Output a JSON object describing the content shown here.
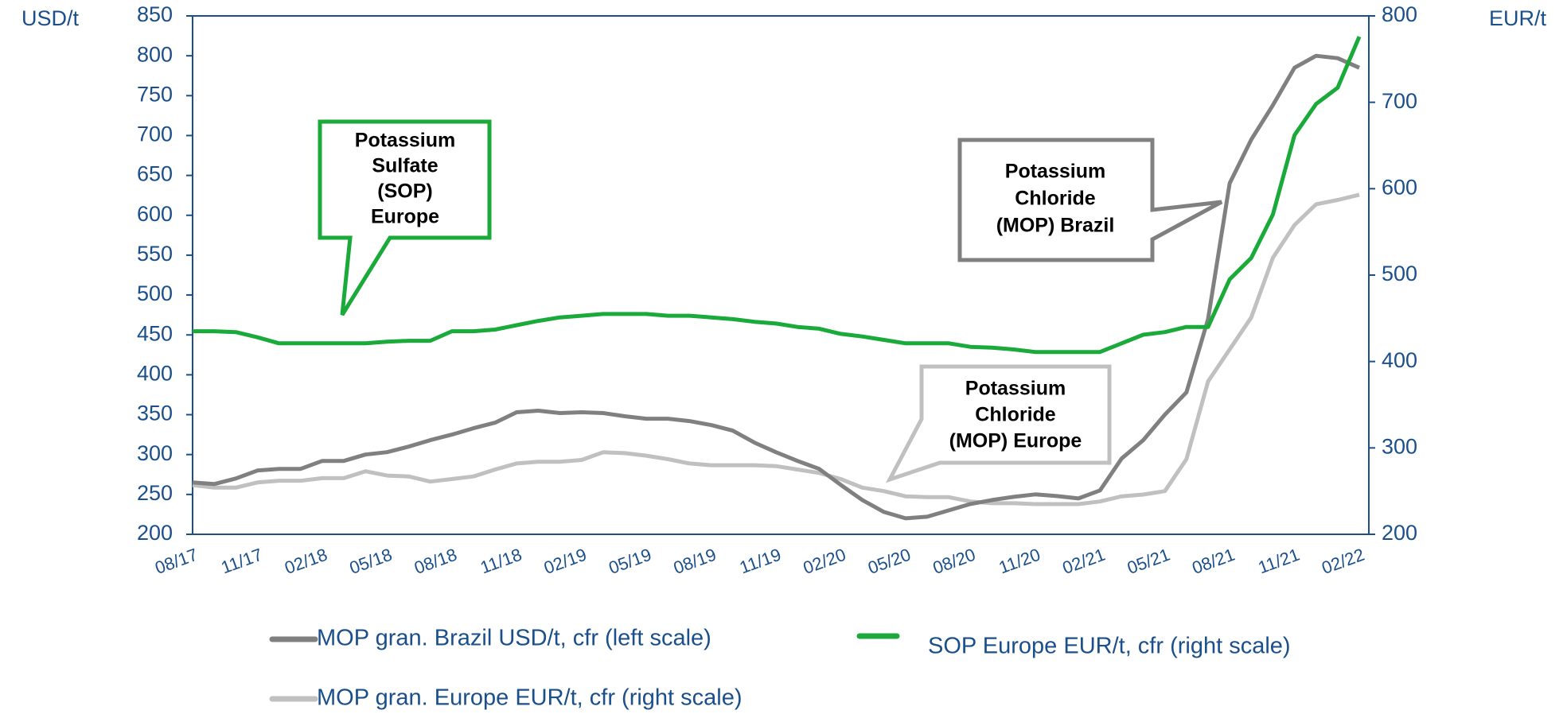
{
  "chart_data": {
    "type": "line",
    "y_label": "USD/t",
    "y2_label": "EUR/t",
    "categories": [
      "08/17",
      null,
      null,
      "11/17",
      null,
      null,
      "02/18",
      null,
      null,
      "05/18",
      null,
      null,
      "08/18",
      null,
      null,
      "11/18",
      null,
      null,
      "02/19",
      null,
      null,
      "05/19",
      null,
      null,
      "08/19",
      null,
      null,
      "11/19",
      null,
      null,
      "02/20",
      null,
      null,
      "05/20",
      null,
      null,
      "08/20",
      null,
      null,
      "11/20",
      null,
      null,
      "02/21",
      null,
      null,
      "05/21",
      null,
      null,
      "08/21",
      null,
      null,
      "11/21",
      null,
      null,
      "02/22"
    ],
    "ylim": [
      200,
      850
    ],
    "yticks": [
      200,
      250,
      300,
      350,
      400,
      450,
      500,
      550,
      600,
      650,
      700,
      750,
      800,
      850
    ],
    "y2lim": [
      200,
      800
    ],
    "y2ticks": [
      200,
      300,
      400,
      500,
      600,
      700,
      800
    ],
    "series": [
      {
        "name": "MOP gran. Brazil USD/t, cfr (left scale)",
        "color": "#808080",
        "axis": "y",
        "values": [
          265,
          263,
          270,
          280,
          282,
          282,
          292,
          292,
          300,
          303,
          310,
          318,
          325,
          333,
          340,
          353,
          355,
          352,
          353,
          352,
          348,
          345,
          345,
          342,
          337,
          330,
          315,
          303,
          292,
          282,
          262,
          243,
          228,
          220,
          222,
          230,
          238,
          243,
          247,
          250,
          248,
          245,
          255,
          295,
          318,
          350,
          378,
          470,
          640,
          695,
          738,
          785,
          800,
          797,
          785
        ]
      },
      {
        "name": "SOP Europe EUR/t, cfr (right scale)",
        "color": "#1aaa3a",
        "axis": "y2",
        "values": [
          435,
          435,
          434,
          428,
          421,
          421,
          421,
          421,
          421,
          423,
          424,
          424,
          435,
          435,
          437,
          442,
          447,
          451,
          453,
          455,
          455,
          455,
          453,
          453,
          451,
          449,
          446,
          444,
          440,
          438,
          432,
          429,
          425,
          421,
          421,
          421,
          417,
          416,
          414,
          411,
          411,
          411,
          411,
          421,
          431,
          434,
          440,
          440,
          495,
          520,
          570,
          662,
          698,
          717,
          776
        ]
      },
      {
        "name": "MOP gran. Europe EUR/t, cfr (right scale)",
        "color": "#c0c0c0",
        "axis": "y2",
        "values": [
          257,
          254,
          254,
          260,
          262,
          262,
          265,
          265,
          273,
          268,
          267,
          261,
          264,
          267,
          275,
          282,
          284,
          284,
          286,
          295,
          294,
          291,
          287,
          282,
          280,
          280,
          280,
          279,
          275,
          271,
          264,
          254,
          250,
          244,
          243,
          243,
          238,
          236,
          236,
          235,
          235,
          235,
          238,
          244,
          246,
          250,
          287,
          377,
          414,
          451,
          520,
          558,
          582,
          587,
          593
        ]
      }
    ],
    "annotations": [
      {
        "lines": [
          "Potassium",
          "Sulfate",
          "(SOP)",
          "Europe"
        ]
      },
      {
        "lines": [
          "Potassium",
          "Chloride",
          "(MOP) Brazil"
        ]
      },
      {
        "lines": [
          "Potassium",
          "Chloride",
          "(MOP) Europe"
        ]
      }
    ]
  }
}
